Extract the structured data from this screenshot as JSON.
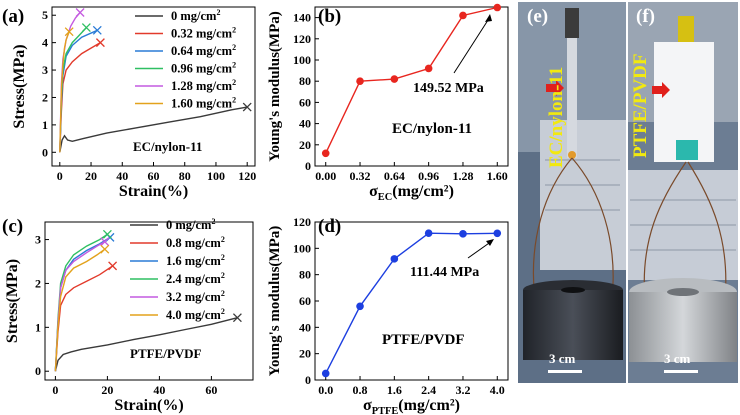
{
  "panels": {
    "a": {
      "label": "(a)",
      "annotation": "EC/nylon-11"
    },
    "b": {
      "label": "(b)",
      "annotation": "EC/nylon-11",
      "callout": "149.52 MPa"
    },
    "c": {
      "label": "(c)",
      "annotation": "PTFE/PVDF"
    },
    "d": {
      "label": "(d)",
      "annotation": "PTFE/PVDF",
      "callout": "111.44 MPa"
    },
    "e": {
      "label": "(e)",
      "sample_text": "EC/nylon-11",
      "scale_bar": "3 cm"
    },
    "f": {
      "label": "(f)",
      "sample_text": "PTFE/PVDF",
      "scale_bar": "3 cm"
    }
  },
  "colors": {
    "red_series": "#e8261f",
    "blue_series": "#1d3fe0",
    "sample_text": "#f2e90f"
  },
  "chart_data": [
    {
      "id": "a",
      "type": "line",
      "xlabel": "Strain(%)",
      "ylabel": "Stress(MPa)",
      "xlim": [
        -5,
        125
      ],
      "ylim": [
        -0.5,
        5.3
      ],
      "xticks": [
        0,
        20,
        40,
        60,
        80,
        100,
        120
      ],
      "yticks": [
        0,
        1,
        2,
        3,
        4,
        5
      ],
      "legend": "top-right",
      "series": [
        {
          "name": "0 mg/cm²",
          "color": "#3a3a3a",
          "x": [
            0,
            1.5,
            3,
            5,
            8,
            15,
            30,
            50,
            70,
            90,
            110,
            120
          ],
          "y": [
            0,
            0.45,
            0.6,
            0.45,
            0.4,
            0.5,
            0.7,
            0.9,
            1.1,
            1.3,
            1.55,
            1.65
          ]
        },
        {
          "name": "0.32 mg/cm²",
          "color": "#e23a2b",
          "x": [
            0,
            1,
            2,
            4,
            8,
            14,
            20,
            26
          ],
          "y": [
            0,
            1.5,
            2.5,
            3.0,
            3.3,
            3.6,
            3.8,
            4.0
          ]
        },
        {
          "name": "0.64 mg/cm²",
          "color": "#2a7bd6",
          "x": [
            0,
            1,
            2,
            4,
            8,
            14,
            24
          ],
          "y": [
            0,
            1.8,
            2.8,
            3.5,
            3.9,
            4.2,
            4.45
          ]
        },
        {
          "name": "0.96 mg/cm²",
          "color": "#2fbf62",
          "x": [
            0,
            1,
            2,
            4,
            8,
            13,
            17
          ],
          "y": [
            0,
            2.0,
            3.0,
            3.6,
            4.0,
            4.3,
            4.55
          ]
        },
        {
          "name": "1.28 mg/cm²",
          "color": "#c45ae0",
          "x": [
            0,
            1,
            2,
            4,
            7,
            10,
            13
          ],
          "y": [
            0,
            2.5,
            3.4,
            4.1,
            4.6,
            4.9,
            5.1
          ]
        },
        {
          "name": "1.60 mg/cm²",
          "color": "#e3a21c",
          "x": [
            0,
            1,
            2,
            3,
            4,
            6
          ],
          "y": [
            0,
            2.3,
            3.2,
            3.8,
            4.1,
            4.4
          ]
        }
      ]
    },
    {
      "id": "b",
      "type": "line",
      "xlabel": "σEC(mg/cm²)",
      "ylabel": "Young's modulus(MPa)",
      "categories": [
        "0.00",
        "0.32",
        "0.64",
        "0.96",
        "1.28",
        "1.60"
      ],
      "x": [
        0,
        0.32,
        0.64,
        0.96,
        1.28,
        1.6
      ],
      "values": [
        12,
        80,
        82,
        92,
        142,
        149.52
      ],
      "xlim": [
        -0.1,
        1.7
      ],
      "ylim": [
        0,
        150
      ],
      "yticks": [
        0,
        20,
        40,
        60,
        80,
        100,
        120,
        140
      ],
      "color": "#e8261f"
    },
    {
      "id": "c",
      "type": "line",
      "xlabel": "Strain(%)",
      "ylabel": "Stress(MPa)",
      "xlim": [
        -4,
        76
      ],
      "ylim": [
        -0.2,
        3.4
      ],
      "xticks": [
        0,
        20,
        40,
        60
      ],
      "yticks": [
        0,
        1,
        2,
        3
      ],
      "legend": "top-right",
      "series": [
        {
          "name": "0 mg/cm²",
          "color": "#3a3a3a",
          "x": [
            0,
            1,
            3,
            6,
            10,
            20,
            30,
            40,
            50,
            60,
            70
          ],
          "y": [
            0,
            0.25,
            0.38,
            0.44,
            0.5,
            0.6,
            0.72,
            0.83,
            0.95,
            1.07,
            1.22
          ]
        },
        {
          "name": "0.8 mg/cm²",
          "color": "#e23a2b",
          "x": [
            0,
            1,
            2,
            4,
            7,
            12,
            17,
            22
          ],
          "y": [
            0,
            0.9,
            1.5,
            1.75,
            1.9,
            2.05,
            2.2,
            2.4
          ]
        },
        {
          "name": "1.6 mg/cm²",
          "color": "#2a7bd6",
          "x": [
            0,
            1,
            2,
            4,
            7,
            12,
            17,
            21
          ],
          "y": [
            0,
            1.1,
            1.9,
            2.3,
            2.55,
            2.75,
            2.9,
            3.05
          ]
        },
        {
          "name": "2.4 mg/cm²",
          "color": "#2fbf62",
          "x": [
            0,
            1,
            2,
            4,
            7,
            12,
            17,
            20
          ],
          "y": [
            0,
            1.2,
            2.0,
            2.4,
            2.65,
            2.85,
            3.0,
            3.12
          ]
        },
        {
          "name": "3.2 mg/cm²",
          "color": "#c45ae0",
          "x": [
            0,
            1,
            2,
            4,
            7,
            12,
            16,
            19
          ],
          "y": [
            0,
            1.1,
            1.9,
            2.3,
            2.5,
            2.7,
            2.85,
            2.95
          ]
        },
        {
          "name": "4.0 mg/cm²",
          "color": "#e3a21c",
          "x": [
            0,
            1,
            2,
            4,
            7,
            12,
            16,
            19
          ],
          "y": [
            0,
            1.0,
            1.7,
            2.15,
            2.35,
            2.5,
            2.65,
            2.78
          ]
        }
      ]
    },
    {
      "id": "d",
      "type": "line",
      "xlabel": "σPTFE(mg/cm²)",
      "ylabel": "Young's modulus(MPa)",
      "categories": [
        "0.0",
        "0.8",
        "1.6",
        "2.4",
        "3.2",
        "4.0"
      ],
      "x": [
        0,
        0.8,
        1.6,
        2.4,
        3.2,
        4.0
      ],
      "values": [
        5,
        56,
        92,
        111.5,
        111,
        111.44
      ],
      "xlim": [
        -0.25,
        4.25
      ],
      "ylim": [
        0,
        120
      ],
      "yticks": [
        0,
        20,
        40,
        60,
        80,
        100,
        120
      ],
      "color": "#1d3fe0"
    }
  ]
}
